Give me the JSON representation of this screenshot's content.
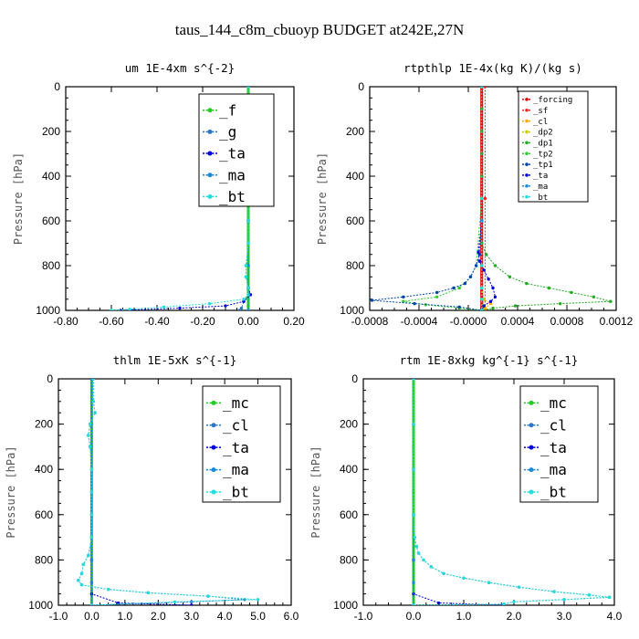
{
  "figure_title": "taus_144_c8m_cbuoyp  BUDGET at242E,27N",
  "chart_data": [
    {
      "type": "line",
      "title": "um   1E-4xm s^{-2}",
      "ylabel": "Pressure [hPa]",
      "xlim": [
        -0.8,
        0.2
      ],
      "ylim": [
        1000,
        0
      ],
      "xticks": [
        "-0.80",
        "-0.60",
        "-0.40",
        "-0.20",
        "0.00",
        "0.20"
      ],
      "yticks": [
        "0",
        "200",
        "400",
        "600",
        "800",
        "1000"
      ],
      "legend": {
        "position": "top-right",
        "large": true
      },
      "series": [
        {
          "name": "_f",
          "color": "#22cc22",
          "y": [
            0,
            100,
            200,
            300,
            400,
            500,
            600,
            700,
            800,
            900,
            950,
            980,
            1000
          ],
          "x": [
            0.0,
            0.0,
            0.0,
            0.0,
            0.0,
            0.0,
            0.0,
            0.0,
            0.0,
            0.0,
            0.0,
            0.0,
            0.0
          ]
        },
        {
          "name": "_g",
          "color": "#2a78c8",
          "y": [
            0,
            200,
            400,
            600,
            700,
            800,
            850,
            900,
            930,
            960,
            990,
            1000
          ],
          "x": [
            0.0,
            0.0,
            0.0,
            0.0,
            0.0,
            -0.01,
            -0.01,
            0.0,
            0.0,
            -0.02,
            -0.03,
            -0.04
          ]
        },
        {
          "name": "_ta",
          "color": "#0000dd",
          "y": [
            0,
            200,
            400,
            600,
            800,
            900,
            930,
            960,
            980,
            990,
            1000
          ],
          "x": [
            0.0,
            0.0,
            0.0,
            0.0,
            0.0,
            0.0,
            0.01,
            -0.02,
            -0.1,
            -0.3,
            -0.56
          ]
        },
        {
          "name": "_ma",
          "color": "#1a8ad8",
          "y": [
            0,
            600,
            800,
            900,
            1000
          ],
          "x": [
            0.0,
            0.0,
            0.0,
            0.0,
            0.0
          ]
        },
        {
          "name": "_bt",
          "color": "#22dddd",
          "y": [
            0,
            100,
            200,
            300,
            400,
            500,
            600,
            700,
            800,
            850,
            900,
            930,
            950,
            970,
            985,
            995,
            1000
          ],
          "x": [
            0.0,
            0.0,
            0.0,
            0.0,
            0.0,
            0.0,
            0.0,
            0.0,
            -0.01,
            -0.01,
            0.0,
            0.0,
            -0.02,
            -0.17,
            -0.37,
            -0.52,
            -0.6
          ]
        }
      ]
    },
    {
      "type": "line",
      "title": "rtpthlp   1E-4x(kg K)/(kg s)",
      "ylabel": "Pressure [hPa]",
      "xlim": [
        -0.001,
        0.0012
      ],
      "ylim": [
        1000,
        0
      ],
      "xticks": [
        "-0.0008",
        "-0.0004",
        "-0.0000",
        "0.0004",
        "0.0008",
        "0.0012"
      ],
      "yticks": [
        "0",
        "200",
        "400",
        "600",
        "800",
        "1000"
      ],
      "legend": {
        "position": "top-right",
        "large": false
      },
      "series": [
        {
          "name": "_forcing",
          "color": "#dd0000",
          "y": [
            0,
            100,
            200,
            300,
            400,
            500,
            600,
            700,
            800,
            900,
            1000
          ],
          "x": [
            0,
            0,
            0,
            0,
            0,
            0,
            0,
            0,
            0,
            0,
            0
          ]
        },
        {
          "name": "_sf",
          "color": "#ff2222",
          "y": [
            0,
            500,
            1000
          ],
          "x": [
            3e-05,
            3e-05,
            3e-05
          ]
        },
        {
          "name": "_cl",
          "color": "#ffaa00",
          "y": [
            0,
            200,
            400,
            600,
            800,
            900,
            950,
            970,
            990,
            1000
          ],
          "x": [
            0,
            0,
            0,
            0,
            0,
            0,
            2e-05,
            8e-05,
            3e-05,
            0
          ]
        },
        {
          "name": "_dp2",
          "color": "#cccc00",
          "y": [
            0,
            500,
            800,
            900,
            950,
            1000
          ],
          "x": [
            0,
            0,
            0,
            0,
            2e-05,
            0
          ]
        },
        {
          "name": "_dp1",
          "color": "#22aa22",
          "y": [
            0,
            100,
            200,
            300,
            400,
            500,
            600,
            700,
            750,
            800,
            850,
            880,
            900,
            920,
            940,
            960,
            970,
            980,
            990,
            1000
          ],
          "x": [
            0,
            0,
            0,
            0,
            0,
            0,
            0,
            0,
            4e-05,
            0.00012,
            0.00025,
            0.0004,
            0.0006,
            0.0008,
            0.001,
            0.00115,
            0.0007,
            0.0003,
            0.0001,
            0
          ]
        },
        {
          "name": "_tp2",
          "color": "#33cc33",
          "y": [
            0,
            500,
            800,
            850,
            900,
            940,
            960,
            975,
            990,
            1000
          ],
          "x": [
            0,
            0,
            -5e-05,
            -0.0001,
            -0.0002,
            -0.0004,
            -0.0007,
            -0.0005,
            -0.0002,
            0
          ]
        },
        {
          "name": "_tp1",
          "color": "#0044aa",
          "y": [
            0,
            600,
            750,
            800,
            850,
            880,
            900,
            920,
            940,
            955,
            970,
            985,
            1000
          ],
          "x": [
            0,
            0,
            -2e-05,
            -5e-05,
            -0.0001,
            -0.00015,
            -0.00025,
            -0.0004,
            -0.0007,
            -0.00098,
            -0.0006,
            -0.0002,
            0
          ]
        },
        {
          "name": "_ta",
          "color": "#0000dd",
          "y": [
            0,
            600,
            740,
            780,
            820,
            860,
            900,
            940,
            960,
            980,
            1000
          ],
          "x": [
            0,
            0,
            -3e-05,
            -2e-05,
            2e-05,
            6e-05,
            0.0001,
            0.00012,
            8e-05,
            2e-05,
            0
          ]
        },
        {
          "name": "_ma",
          "color": "#1a8ad8",
          "y": [
            0,
            600,
            800,
            900,
            1000
          ],
          "x": [
            0,
            0,
            0,
            0,
            0
          ]
        },
        {
          "name": "_bt",
          "color": "#22dddd",
          "y": [
            0,
            500,
            800,
            900,
            950,
            1000
          ],
          "x": [
            0,
            0,
            0,
            0,
            0,
            0
          ]
        }
      ]
    },
    {
      "type": "line",
      "title": "thlm   1E-5xK  s^{-1}",
      "ylabel": "Pressure [hPa]",
      "xlim": [
        -1.0,
        6.0
      ],
      "ylim": [
        1000,
        0
      ],
      "xticks": [
        "-1.0",
        "0.0",
        "1.0",
        "2.0",
        "3.0",
        "4.0",
        "5.0",
        "6.0"
      ],
      "yticks": [
        "0",
        "200",
        "400",
        "600",
        "800",
        "1000"
      ],
      "legend": {
        "position": "top-right",
        "large": true
      },
      "series": [
        {
          "name": "_mc",
          "color": "#22cc22",
          "y": [
            0,
            100,
            200,
            300,
            400,
            500,
            600,
            700,
            800,
            900,
            950,
            1000
          ],
          "x": [
            0,
            0,
            0,
            0,
            0,
            0,
            0,
            0,
            0,
            0,
            0,
            0
          ]
        },
        {
          "name": "_cl",
          "color": "#2a78c8",
          "y": [
            0,
            100,
            150,
            200,
            250,
            300,
            400,
            500,
            600,
            700,
            780,
            820,
            860,
            890,
            910,
            930,
            945,
            960,
            975,
            985,
            1000
          ],
          "x": [
            0.05,
            0.05,
            0.1,
            -0.05,
            -0.1,
            -0.05,
            0.0,
            0.0,
            0.0,
            0.0,
            -0.1,
            -0.25,
            -0.3,
            -0.4,
            -0.3,
            0.5,
            1.7,
            3.5,
            4.6,
            3.0,
            0.0
          ]
        },
        {
          "name": "_ta",
          "color": "#0000dd",
          "y": [
            0,
            800,
            950,
            990,
            1000
          ],
          "x": [
            0,
            0,
            0,
            0.8,
            3.0
          ]
        },
        {
          "name": "_ma",
          "color": "#1a8ad8",
          "y": [
            0,
            600,
            800,
            900,
            1000
          ],
          "x": [
            0,
            0,
            0,
            0,
            0
          ]
        },
        {
          "name": "_bt",
          "color": "#22dddd",
          "y": [
            0,
            100,
            150,
            200,
            250,
            300,
            400,
            500,
            600,
            700,
            780,
            820,
            860,
            890,
            910,
            930,
            945,
            960,
            975,
            985,
            1000
          ],
          "x": [
            0.05,
            0.05,
            0.1,
            -0.05,
            -0.1,
            -0.05,
            0.0,
            0.0,
            0.0,
            0.0,
            -0.1,
            -0.25,
            -0.3,
            -0.4,
            -0.3,
            0.5,
            1.7,
            3.5,
            5.0,
            2.5,
            0.0
          ]
        }
      ]
    },
    {
      "type": "line",
      "title": "rtm   1E-8xkg kg^{-1} s^{-1}",
      "ylabel": "Pressure [hPa]",
      "xlim": [
        -1.0,
        4.0
      ],
      "ylim": [
        1000,
        0
      ],
      "xticks": [
        "-1.0",
        "0.0",
        "1.0",
        "2.0",
        "3.0",
        "4.0"
      ],
      "yticks": [
        "0",
        "200",
        "400",
        "600",
        "800",
        "1000"
      ],
      "legend": {
        "position": "top-right",
        "large": true
      },
      "series": [
        {
          "name": "_mc",
          "color": "#22cc22",
          "y": [
            0,
            100,
            200,
            300,
            400,
            500,
            600,
            700,
            800,
            900,
            950,
            1000
          ],
          "x": [
            0,
            0,
            0,
            0,
            0,
            0,
            0,
            0,
            0,
            0,
            0,
            0
          ]
        },
        {
          "name": "_cl",
          "color": "#2a78c8",
          "y": [
            0,
            200,
            400,
            600,
            700,
            740,
            770,
            800,
            830,
            860,
            880,
            900,
            920,
            940,
            955,
            965,
            975,
            985,
            995,
            1000
          ],
          "x": [
            0,
            0,
            0,
            0,
            0.02,
            0.06,
            0.1,
            0.2,
            0.35,
            0.6,
            1.0,
            1.5,
            2.1,
            2.8,
            3.5,
            3.9,
            3.0,
            2.0,
            1.8,
            0
          ]
        },
        {
          "name": "_ta",
          "color": "#0000dd",
          "y": [
            0,
            800,
            950,
            990,
            1000
          ],
          "x": [
            0,
            0,
            0,
            0.5,
            1.8
          ]
        },
        {
          "name": "_ma",
          "color": "#1a8ad8",
          "y": [
            0,
            600,
            800,
            900,
            1000
          ],
          "x": [
            0,
            0,
            0,
            0,
            0
          ]
        },
        {
          "name": "_bt",
          "color": "#22dddd",
          "y": [
            0,
            200,
            400,
            600,
            700,
            740,
            770,
            800,
            830,
            860,
            880,
            900,
            920,
            940,
            955,
            965,
            975,
            985,
            995,
            1000
          ],
          "x": [
            0,
            0,
            0,
            0,
            0.02,
            0.06,
            0.1,
            0.2,
            0.35,
            0.6,
            1.0,
            1.5,
            2.1,
            2.8,
            3.5,
            3.9,
            3.0,
            2.0,
            1.8,
            0
          ]
        }
      ]
    }
  ]
}
